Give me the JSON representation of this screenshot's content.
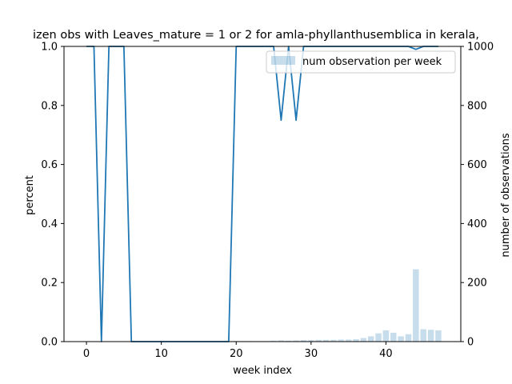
{
  "chart_data": {
    "type": "line",
    "title": "izen obs with Leaves_mature = 1 or 2 for amla-phyllanthusemblica in kerala,",
    "xlabel": "week index",
    "ylabel": "percent",
    "y2label": "number of observations",
    "xlim": [
      -3,
      50
    ],
    "ylim": [
      0,
      1.0
    ],
    "y2lim": [
      0,
      1000
    ],
    "xticks": [
      0,
      10,
      20,
      30,
      40
    ],
    "yticks": [
      0.0,
      0.2,
      0.4,
      0.6,
      0.8,
      1.0
    ],
    "y2ticks": [
      0,
      200,
      400,
      600,
      800,
      1000
    ],
    "xtick_labels": [
      "0",
      "10",
      "20",
      "30",
      "40"
    ],
    "ytick_labels": [
      "0.0",
      "0.2",
      "0.4",
      "0.6",
      "0.8",
      "1.0"
    ],
    "y2tick_labels": [
      "0",
      "200",
      "400",
      "600",
      "800",
      "1000"
    ],
    "grid": false,
    "legend_position": "top-right",
    "line_series": {
      "color": "#1f77b4",
      "x": [
        0,
        1,
        2,
        3,
        4,
        5,
        6,
        7,
        8,
        9,
        10,
        11,
        12,
        13,
        14,
        15,
        16,
        17,
        18,
        19,
        20,
        21,
        22,
        23,
        24,
        25,
        26,
        27,
        28,
        29,
        30,
        31,
        32,
        33,
        34,
        35,
        36,
        37,
        38,
        39,
        40,
        41,
        42,
        43,
        44,
        45,
        46,
        47
      ],
      "y": [
        1.0,
        1.0,
        0.0,
        1.0,
        1.0,
        1.0,
        0.0,
        0.0,
        0.0,
        0.0,
        0.0,
        0.0,
        0.0,
        0.0,
        0.0,
        0.0,
        0.0,
        0.0,
        0.0,
        0.0,
        1.0,
        1.0,
        1.0,
        1.0,
        1.0,
        1.0,
        0.75,
        1.0,
        0.75,
        1.0,
        1.0,
        1.0,
        1.0,
        1.0,
        1.0,
        1.0,
        1.0,
        1.0,
        1.0,
        1.0,
        1.0,
        1.0,
        1.0,
        1.0,
        0.99,
        1.0,
        1.0,
        1.0
      ]
    },
    "bar_series": {
      "name": "num observation per week",
      "color": "#1f77b4",
      "opacity": 0.25,
      "x": [
        0,
        1,
        2,
        3,
        4,
        5,
        6,
        7,
        8,
        9,
        10,
        11,
        12,
        13,
        14,
        15,
        16,
        17,
        18,
        19,
        20,
        21,
        22,
        23,
        24,
        25,
        26,
        27,
        28,
        29,
        30,
        31,
        32,
        33,
        34,
        35,
        36,
        37,
        38,
        39,
        40,
        41,
        42,
        43,
        44,
        45,
        46,
        47
      ],
      "values": [
        1,
        1,
        1,
        1,
        1,
        1,
        1,
        1,
        1,
        1,
        1,
        1,
        1,
        1,
        1,
        1,
        1,
        1,
        1,
        1,
        2,
        2,
        2,
        2,
        2,
        3,
        4,
        3,
        4,
        5,
        5,
        6,
        6,
        6,
        7,
        7,
        8,
        12,
        18,
        28,
        38,
        30,
        18,
        25,
        245,
        42,
        40,
        38
      ]
    }
  }
}
